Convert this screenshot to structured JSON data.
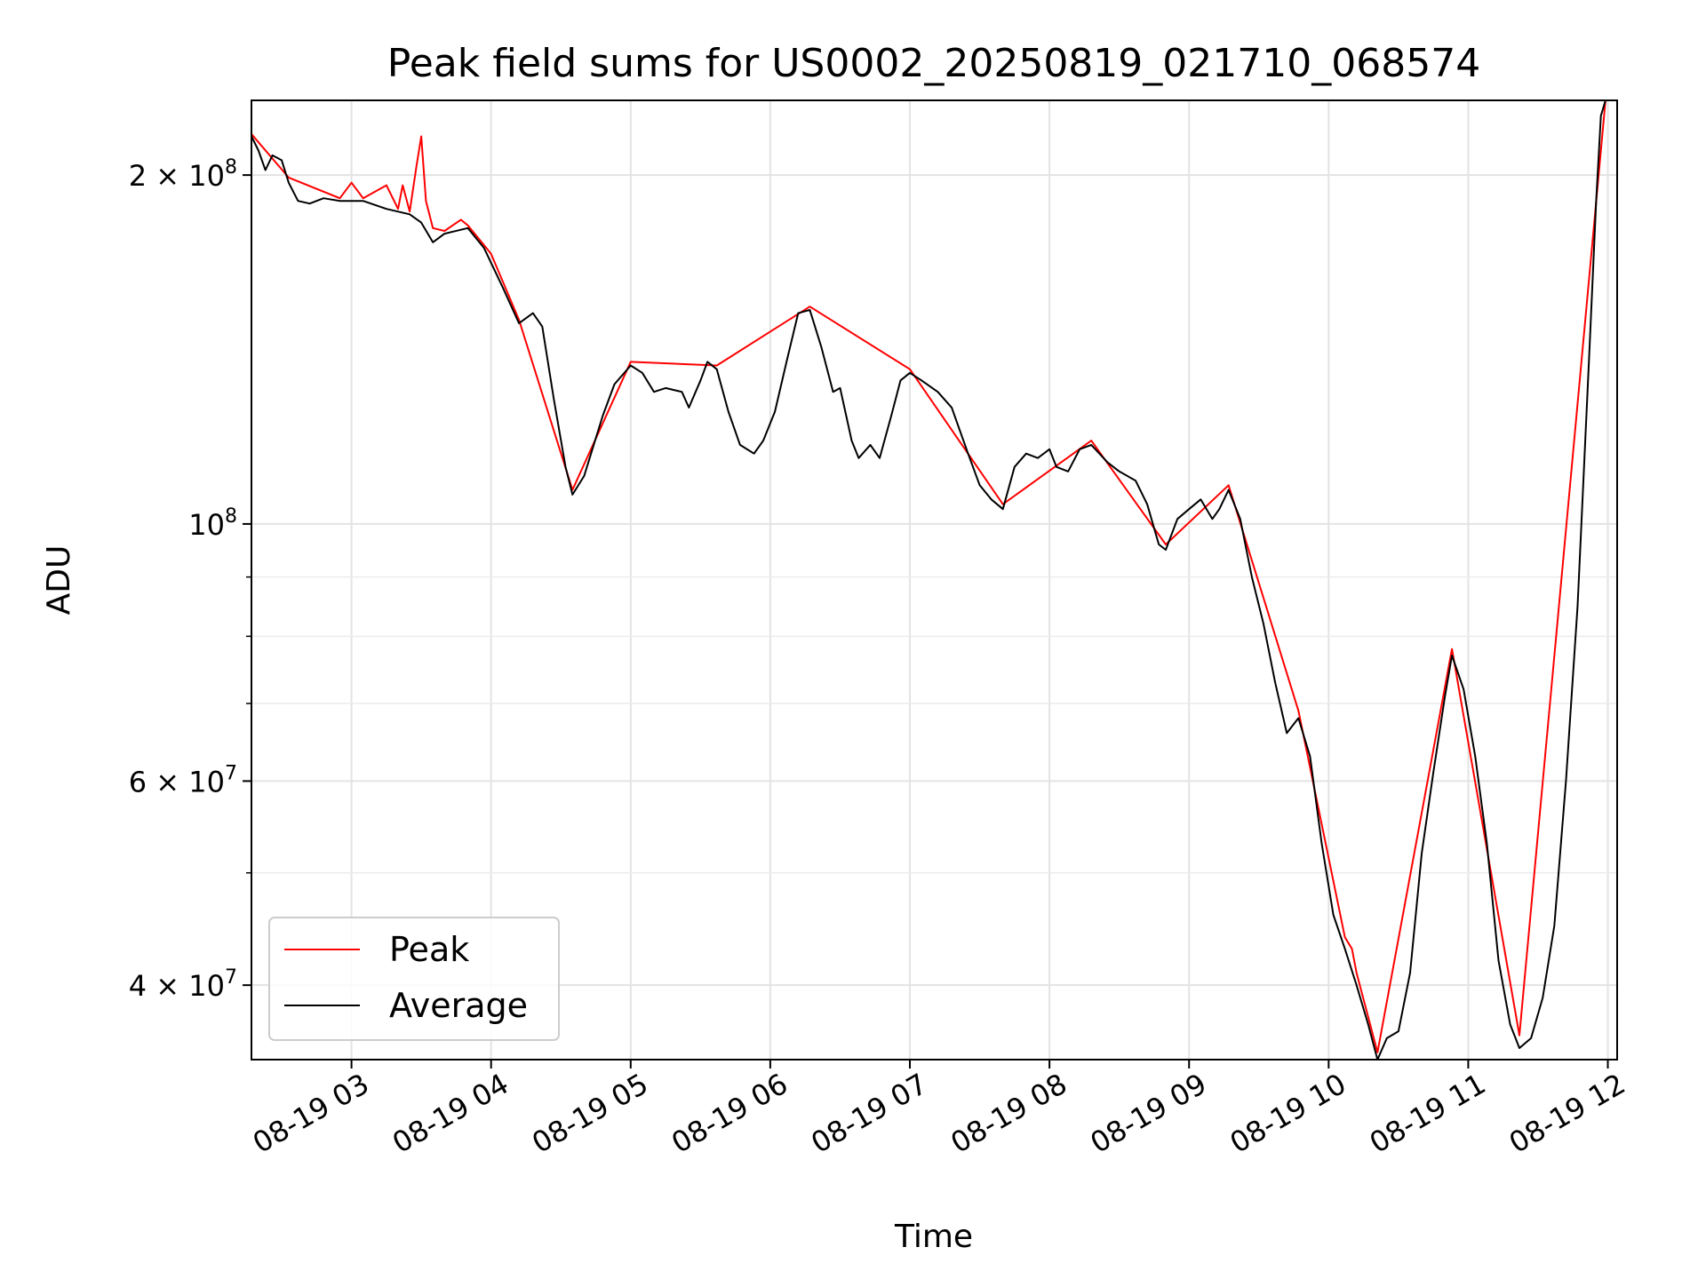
{
  "chart_data": {
    "type": "line",
    "title": "Peak field sums for US0002_20250819_021710_068574",
    "xlabel": "Time",
    "ylabel": "ADU",
    "y_scale": "log",
    "ylim": [
      34500000,
      232000000
    ],
    "xlim": [
      "08-19 02:17",
      "08-19 12:04"
    ],
    "grid": true,
    "legend_position": "lower-left",
    "x_tick_labels": [
      "08-19 03",
      "08-19 04",
      "08-19 05",
      "08-19 06",
      "08-19 07",
      "08-19 08",
      "08-19 09",
      "08-19 10",
      "08-19 11",
      "08-19 12"
    ],
    "x_ticks": [
      "08-19 03:00",
      "08-19 04:00",
      "08-19 05:00",
      "08-19 06:00",
      "08-19 07:00",
      "08-19 08:00",
      "08-19 09:00",
      "08-19 10:00",
      "08-19 11:00",
      "08-19 12:00"
    ],
    "y_major_ticks": [
      {
        "value": 200000000,
        "mantissa": "2",
        "exponent": "8"
      },
      {
        "value": 100000000,
        "mantissa": "",
        "exponent": "8"
      },
      {
        "value": 60000000,
        "mantissa": "6",
        "exponent": "7"
      },
      {
        "value": 40000000,
        "mantissa": "4",
        "exponent": "7"
      }
    ],
    "y_minor_ticks": [
      90000000,
      80000000,
      70000000,
      50000000
    ],
    "series": [
      {
        "name": "Average",
        "color": "#000000",
        "points": [
          [
            "08-19 02:17",
            216000000.0
          ],
          [
            "08-19 02:20",
            210000000.0
          ],
          [
            "08-19 02:23",
            202000000.0
          ],
          [
            "08-19 02:26",
            208000000.0
          ],
          [
            "08-19 02:30",
            206000000.0
          ],
          [
            "08-19 02:33",
            197000000.0
          ],
          [
            "08-19 02:37",
            190000000.0
          ],
          [
            "08-19 02:42",
            189000000.0
          ],
          [
            "08-19 02:48",
            191000000.0
          ],
          [
            "08-19 02:55",
            190000000.0
          ],
          [
            "08-19 03:05",
            190000000.0
          ],
          [
            "08-19 03:15",
            187000000.0
          ],
          [
            "08-19 03:25",
            185000000.0
          ],
          [
            "08-19 03:30",
            182000000.0
          ],
          [
            "08-19 03:35",
            175000000.0
          ],
          [
            "08-19 03:40",
            178000000.0
          ],
          [
            "08-19 03:50",
            180000000.0
          ],
          [
            "08-19 03:57",
            173000000.0
          ],
          [
            "08-19 04:05",
            160000000.0
          ],
          [
            "08-19 04:12",
            149000000.0
          ],
          [
            "08-19 04:18",
            152000000.0
          ],
          [
            "08-19 04:22",
            148000000.0
          ],
          [
            "08-19 04:27",
            128000000.0
          ],
          [
            "08-19 04:32",
            112000000.0
          ],
          [
            "08-19 04:35",
            106000000.0
          ],
          [
            "08-19 04:40",
            110000000.0
          ],
          [
            "08-19 04:48",
            124000000.0
          ],
          [
            "08-19 04:53",
            132000000.0
          ],
          [
            "08-19 05:00",
            137000000.0
          ],
          [
            "08-19 05:05",
            135000000.0
          ],
          [
            "08-19 05:10",
            130000000.0
          ],
          [
            "08-19 05:15",
            131000000.0
          ],
          [
            "08-19 05:22",
            130000000.0
          ],
          [
            "08-19 05:25",
            126000000.0
          ],
          [
            "08-19 05:30",
            133000000.0
          ],
          [
            "08-19 05:33",
            138000000.0
          ],
          [
            "08-19 05:37",
            136000000.0
          ],
          [
            "08-19 05:42",
            125000000.0
          ],
          [
            "08-19 05:47",
            117000000.0
          ],
          [
            "08-19 05:53",
            115000000.0
          ],
          [
            "08-19 05:57",
            118000000.0
          ],
          [
            "08-19 06:02",
            125000000.0
          ],
          [
            "08-19 06:07",
            138000000.0
          ],
          [
            "08-19 06:12",
            152000000.0
          ],
          [
            "08-19 06:17",
            153000000.0
          ],
          [
            "08-19 06:22",
            142000000.0
          ],
          [
            "08-19 06:27",
            130000000.0
          ],
          [
            "08-19 06:30",
            131000000.0
          ],
          [
            "08-19 06:35",
            118000000.0
          ],
          [
            "08-19 06:38",
            114000000.0
          ],
          [
            "08-19 06:43",
            117000000.0
          ],
          [
            "08-19 06:47",
            114000000.0
          ],
          [
            "08-19 06:52",
            124000000.0
          ],
          [
            "08-19 06:56",
            133000000.0
          ],
          [
            "08-19 07:00",
            135000000.0
          ],
          [
            "08-19 07:05",
            133000000.0
          ],
          [
            "08-19 07:12",
            130000000.0
          ],
          [
            "08-19 07:18",
            126000000.0
          ],
          [
            "08-19 07:25",
            115000000.0
          ],
          [
            "08-19 07:30",
            108000000.0
          ],
          [
            "08-19 07:35",
            105000000.0
          ],
          [
            "08-19 07:40",
            103000000.0
          ],
          [
            "08-19 07:45",
            112000000.0
          ],
          [
            "08-19 07:50",
            115000000.0
          ],
          [
            "08-19 07:55",
            114000000.0
          ],
          [
            "08-19 08:00",
            116000000.0
          ],
          [
            "08-19 08:03",
            112000000.0
          ],
          [
            "08-19 08:08",
            111000000.0
          ],
          [
            "08-19 08:13",
            116000000.0
          ],
          [
            "08-19 08:18",
            117000000.0
          ],
          [
            "08-19 08:25",
            113000000.0
          ],
          [
            "08-19 08:30",
            111000000.0
          ],
          [
            "08-19 08:37",
            109000000.0
          ],
          [
            "08-19 08:42",
            104000000.0
          ],
          [
            "08-19 08:47",
            96000000.0
          ],
          [
            "08-19 08:50",
            95000000.0
          ],
          [
            "08-19 08:55",
            101000000.0
          ],
          [
            "08-19 09:00",
            103000000.0
          ],
          [
            "08-19 09:05",
            105000000.0
          ],
          [
            "08-19 09:10",
            101000000.0
          ],
          [
            "08-19 09:13",
            103000000.0
          ],
          [
            "08-19 09:17",
            107000000.0
          ],
          [
            "08-19 09:22",
            101000000.0
          ],
          [
            "08-19 09:27",
            90000000.0
          ],
          [
            "08-19 09:32",
            82000000.0
          ],
          [
            "08-19 09:37",
            73000000.0
          ],
          [
            "08-19 09:42",
            66000000.0
          ],
          [
            "08-19 09:47",
            68000000.0
          ],
          [
            "08-19 09:52",
            63000000.0
          ],
          [
            "08-19 09:57",
            53000000.0
          ],
          [
            "08-19 10:02",
            46000000.0
          ],
          [
            "08-19 10:07",
            43000000.0
          ],
          [
            "08-19 10:12",
            40000000.0
          ],
          [
            "08-19 10:17",
            37000000.0
          ],
          [
            "08-19 10:21",
            34500000.0
          ],
          [
            "08-19 10:25",
            36000000.0
          ],
          [
            "08-19 10:30",
            36500000.0
          ],
          [
            "08-19 10:35",
            41000000.0
          ],
          [
            "08-19 10:40",
            52000000.0
          ],
          [
            "08-19 10:45",
            61000000.0
          ],
          [
            "08-19 10:50",
            71000000.0
          ],
          [
            "08-19 10:53",
            77000000.0
          ],
          [
            "08-19 10:58",
            72000000.0
          ],
          [
            "08-19 11:03",
            63000000.0
          ],
          [
            "08-19 11:08",
            53000000.0
          ],
          [
            "08-19 11:13",
            42000000.0
          ],
          [
            "08-19 11:18",
            37000000.0
          ],
          [
            "08-19 11:22",
            35300000.0
          ],
          [
            "08-19 11:27",
            36000000.0
          ],
          [
            "08-19 11:32",
            39000000.0
          ],
          [
            "08-19 11:37",
            45000000.0
          ],
          [
            "08-19 11:42",
            60000000.0
          ],
          [
            "08-19 11:47",
            85000000.0
          ],
          [
            "08-19 11:52",
            140000000.0
          ],
          [
            "08-19 11:55",
            190000000.0
          ],
          [
            "08-19 11:57",
            225000000.0
          ],
          [
            "08-19 11:59",
            232000000.0
          ]
        ]
      },
      {
        "name": "Peak",
        "color": "#ff0000",
        "points": [
          [
            "08-19 02:17",
            217000000.0
          ],
          [
            "08-19 02:33",
            199000000.0
          ],
          [
            "08-19 02:55",
            191000000.0
          ],
          [
            "08-19 03:00",
            197000000.0
          ],
          [
            "08-19 03:05",
            191000000.0
          ],
          [
            "08-19 03:15",
            196000000.0
          ],
          [
            "08-19 03:20",
            187000000.0
          ],
          [
            "08-19 03:22",
            196000000.0
          ],
          [
            "08-19 03:25",
            186000000.0
          ],
          [
            "08-19 03:28",
            204000000.0
          ],
          [
            "08-19 03:30",
            216000000.0
          ],
          [
            "08-19 03:32",
            190000000.0
          ],
          [
            "08-19 03:35",
            180000000.0
          ],
          [
            "08-19 03:40",
            179000000.0
          ],
          [
            "08-19 03:47",
            183000000.0
          ],
          [
            "08-19 03:50",
            181000000.0
          ],
          [
            "08-19 03:57",
            174000000.0
          ],
          [
            "08-19 04:00",
            171000000.0
          ],
          [
            "08-19 04:12",
            150000000.0
          ],
          [
            "08-19 04:35",
            107000000.0
          ],
          [
            "08-19 05:00",
            138000000.0
          ],
          [
            "08-19 05:37",
            137000000.0
          ],
          [
            "08-19 06:17",
            154000000.0
          ],
          [
            "08-19 07:00",
            136000000.0
          ],
          [
            "08-19 07:40",
            104000000.0
          ],
          [
            "08-19 08:18",
            118000000.0
          ],
          [
            "08-19 08:50",
            96000000.0
          ],
          [
            "08-19 09:17",
            108000000.0
          ],
          [
            "08-19 09:47",
            69000000.0
          ],
          [
            "08-19 10:07",
            44000000.0
          ],
          [
            "08-19 10:10",
            43000000.0
          ],
          [
            "08-19 10:12",
            41000000.0
          ],
          [
            "08-19 10:21",
            35000000.0
          ],
          [
            "08-19 10:53",
            78000000.0
          ],
          [
            "08-19 11:22",
            36200000.0
          ],
          [
            "08-19 11:59",
            232000000.0
          ]
        ]
      }
    ]
  }
}
